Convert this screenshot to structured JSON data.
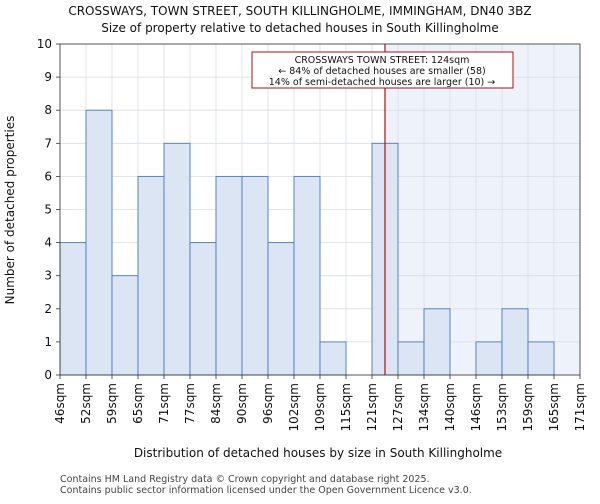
{
  "chart_data": {
    "type": "bar",
    "title": "CROSSWAYS, TOWN STREET, SOUTH KILLINGHOLME, IMMINGHAM, DN40 3BZ",
    "subtitle": "Size of property relative to detached houses in South Killingholme",
    "xlabel": "Distribution of detached houses by size in South Killingholme",
    "ylabel": "Number of detached properties",
    "ylim": [
      0,
      10
    ],
    "yticks": [
      0,
      1,
      2,
      3,
      4,
      5,
      6,
      7,
      8,
      9,
      10
    ],
    "grid": true,
    "bin_edges_labels": [
      "46sqm",
      "52sqm",
      "59sqm",
      "65sqm",
      "71sqm",
      "77sqm",
      "84sqm",
      "90sqm",
      "96sqm",
      "102sqm",
      "109sqm",
      "115sqm",
      "121sqm",
      "127sqm",
      "134sqm",
      "140sqm",
      "146sqm",
      "153sqm",
      "159sqm",
      "165sqm",
      "171sqm"
    ],
    "values": [
      4,
      8,
      3,
      6,
      7,
      4,
      6,
      6,
      4,
      6,
      1,
      0,
      7,
      1,
      2,
      0,
      1,
      2,
      1,
      0
    ],
    "marker": {
      "value_sqm": 124,
      "bin_position": 12.5,
      "line_color": "#aa1111"
    },
    "annotation": {
      "line1": "CROSSWAYS TOWN STREET: 124sqm",
      "line2": "← 84% of detached houses are smaller (58)",
      "line3": "14% of semi-detached houses are larger (10) →"
    },
    "colors": {
      "bar_fill": "#dbe5f4",
      "bar_stroke": "#4a78c0",
      "highlight_fill": "#eef2fb",
      "grid": "#d9dde6",
      "annotation_border": "#aa1111"
    }
  },
  "footer": {
    "line1": "Contains HM Land Registry data © Crown copyright and database right 2025.",
    "line2": "Contains public sector information licensed under the Open Government Licence v3.0."
  }
}
